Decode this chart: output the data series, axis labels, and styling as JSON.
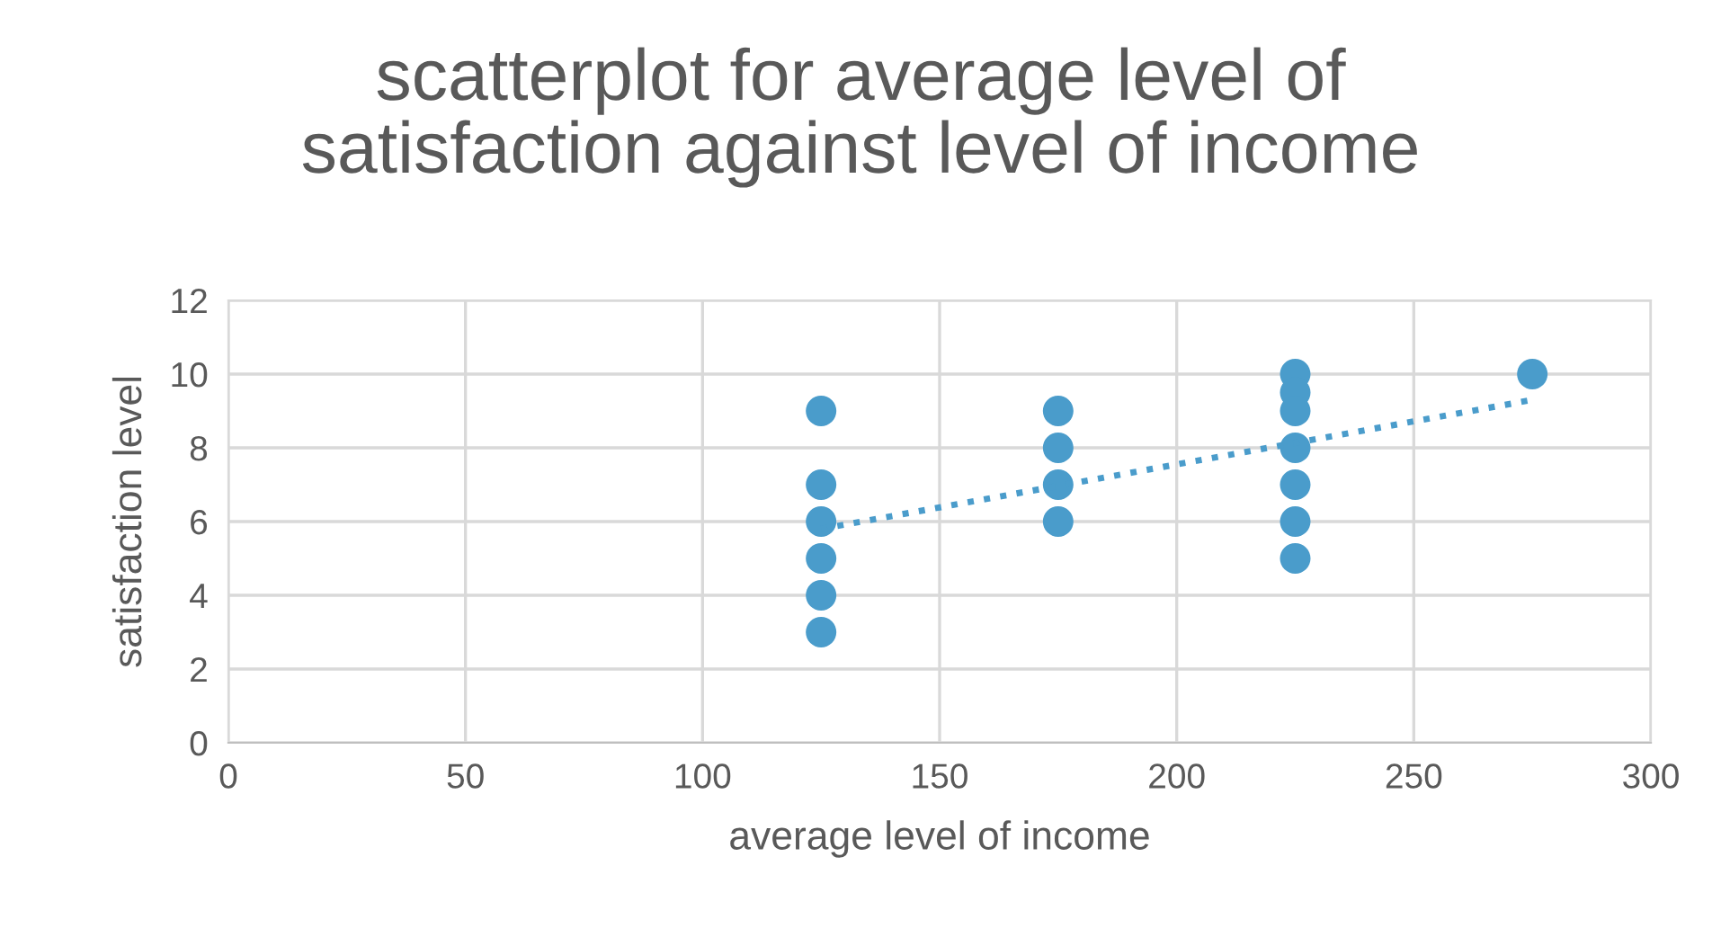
{
  "chart_data": {
    "type": "scatter",
    "title": "scatterplot for average level of\nsatisfaction against level of income",
    "xlabel": "average level of income",
    "ylabel": "satisfaction level",
    "series": [
      {
        "color": "#4a9ccb",
        "marker": "circle",
        "x": [
          125,
          125,
          125,
          125,
          125,
          125,
          175,
          175,
          175,
          175,
          225,
          225,
          225,
          225,
          225,
          225,
          225,
          275
        ],
        "values": [
          9,
          7,
          6,
          5,
          4,
          3,
          9,
          8,
          7,
          6,
          10,
          9.5,
          9,
          8,
          7,
          6,
          5,
          10
        ]
      },
      {
        "type": "line",
        "color": "#4a9ccb",
        "line_style": "dotted",
        "x": [
          125,
          275
        ],
        "values": [
          5.8,
          9.3
        ]
      }
    ],
    "xlim": [
      0,
      300
    ],
    "xticks": [
      0,
      50,
      100,
      150,
      200,
      250,
      300
    ],
    "ylim": [
      0,
      12
    ],
    "yticks": [
      0,
      2,
      4,
      6,
      8,
      10,
      12
    ],
    "grid": true,
    "legend": false
  }
}
